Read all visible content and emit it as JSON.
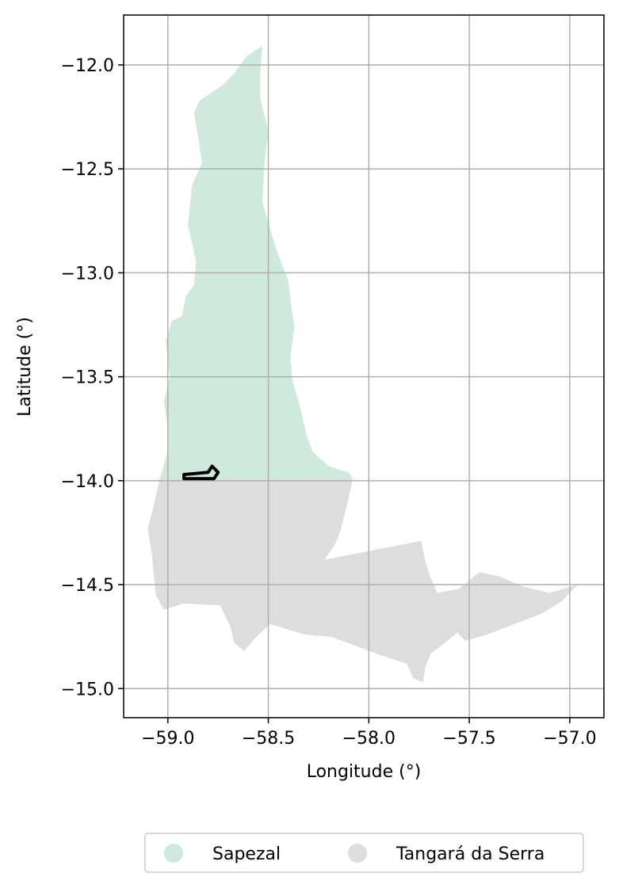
{
  "chart_data": {
    "type": "map",
    "xlabel": "Longitude (°)",
    "ylabel": "Latitude (°)",
    "xlim": [
      -59.22,
      -56.83
    ],
    "ylim": [
      -15.14,
      -11.76
    ],
    "xticks": [
      -59.0,
      -58.5,
      -58.0,
      -57.5,
      -57.0
    ],
    "xtick_labels": [
      "−59.0",
      "−58.5",
      "−58.0",
      "−57.5",
      "−57.0"
    ],
    "yticks": [
      -12.0,
      -12.5,
      -13.0,
      -13.5,
      -14.0,
      -14.5,
      -15.0
    ],
    "ytick_labels": [
      "−12.0",
      "−12.5",
      "−13.0",
      "−13.5",
      "−14.0",
      "−14.5",
      "−15.0"
    ],
    "grid": true,
    "legend_position": "bottom-center",
    "regions": [
      {
        "name": "Sapezal",
        "color": "#cfeadc",
        "polygon": [
          [
            -58.55,
            -11.92
          ],
          [
            -58.61,
            -11.96
          ],
          [
            -58.67,
            -12.04
          ],
          [
            -58.73,
            -12.1
          ],
          [
            -58.84,
            -12.17
          ],
          [
            -58.87,
            -12.23
          ],
          [
            -58.85,
            -12.34
          ],
          [
            -58.83,
            -12.47
          ],
          [
            -58.88,
            -12.58
          ],
          [
            -58.9,
            -12.77
          ],
          [
            -58.86,
            -12.94
          ],
          [
            -58.87,
            -13.06
          ],
          [
            -58.91,
            -13.11
          ],
          [
            -58.93,
            -13.21
          ],
          [
            -58.98,
            -13.23
          ],
          [
            -59.01,
            -13.33
          ],
          [
            -58.99,
            -13.5
          ],
          [
            -59.02,
            -13.62
          ],
          [
            -59.0,
            -13.74
          ],
          [
            -59.0,
            -13.86
          ],
          [
            -59.04,
            -13.99
          ],
          [
            -58.08,
            -13.99
          ],
          [
            -58.1,
            -13.96
          ],
          [
            -58.2,
            -13.93
          ],
          [
            -58.28,
            -13.86
          ],
          [
            -58.31,
            -13.78
          ],
          [
            -58.34,
            -13.65
          ],
          [
            -58.38,
            -13.52
          ],
          [
            -58.39,
            -13.4
          ],
          [
            -58.37,
            -13.26
          ],
          [
            -58.39,
            -13.13
          ],
          [
            -58.4,
            -13.04
          ],
          [
            -58.46,
            -12.89
          ],
          [
            -58.53,
            -12.66
          ],
          [
            -58.52,
            -12.48
          ],
          [
            -58.5,
            -12.32
          ],
          [
            -58.54,
            -12.16
          ],
          [
            -58.54,
            -12.03
          ],
          [
            -58.53,
            -11.91
          ]
        ]
      },
      {
        "name": "Tangará da Serra",
        "color": "#dddddd",
        "polygon": [
          [
            -59.04,
            -13.99
          ],
          [
            -58.08,
            -13.99
          ],
          [
            -58.1,
            -14.08
          ],
          [
            -58.14,
            -14.24
          ],
          [
            -58.17,
            -14.31
          ],
          [
            -58.22,
            -14.38
          ],
          [
            -57.74,
            -14.29
          ],
          [
            -57.72,
            -14.38
          ],
          [
            -57.7,
            -14.45
          ],
          [
            -57.66,
            -14.54
          ],
          [
            -57.55,
            -14.52
          ],
          [
            -57.45,
            -14.44
          ],
          [
            -57.35,
            -14.46
          ],
          [
            -57.23,
            -14.51
          ],
          [
            -57.1,
            -14.54
          ],
          [
            -56.96,
            -14.5
          ],
          [
            -57.04,
            -14.58
          ],
          [
            -57.14,
            -14.64
          ],
          [
            -57.25,
            -14.68
          ],
          [
            -57.41,
            -14.74
          ],
          [
            -57.52,
            -14.77
          ],
          [
            -57.56,
            -14.73
          ],
          [
            -57.62,
            -14.78
          ],
          [
            -57.69,
            -14.83
          ],
          [
            -57.72,
            -14.9
          ],
          [
            -57.73,
            -14.97
          ],
          [
            -57.78,
            -14.95
          ],
          [
            -57.81,
            -14.88
          ],
          [
            -57.94,
            -14.84
          ],
          [
            -58.05,
            -14.8
          ],
          [
            -58.19,
            -14.75
          ],
          [
            -58.32,
            -14.74
          ],
          [
            -58.49,
            -14.69
          ],
          [
            -58.56,
            -14.75
          ],
          [
            -58.62,
            -14.82
          ],
          [
            -58.67,
            -14.78
          ],
          [
            -58.69,
            -14.7
          ],
          [
            -58.74,
            -14.6
          ],
          [
            -58.92,
            -14.59
          ],
          [
            -59.02,
            -14.62
          ],
          [
            -59.06,
            -14.55
          ],
          [
            -59.07,
            -14.45
          ],
          [
            -59.08,
            -14.35
          ],
          [
            -59.1,
            -14.23
          ],
          [
            -59.07,
            -14.12
          ]
        ]
      }
    ],
    "highlight_outline": {
      "color": "#000000",
      "polygon": [
        [
          -58.92,
          -13.97
        ],
        [
          -58.8,
          -13.96
        ],
        [
          -58.78,
          -13.93
        ],
        [
          -58.75,
          -13.96
        ],
        [
          -58.77,
          -13.99
        ],
        [
          -58.92,
          -13.99
        ]
      ]
    }
  },
  "legend": {
    "items": [
      {
        "label": "Sapezal",
        "color": "#cfeadc"
      },
      {
        "label": "Tangará da Serra",
        "color": "#dddddd"
      }
    ]
  }
}
